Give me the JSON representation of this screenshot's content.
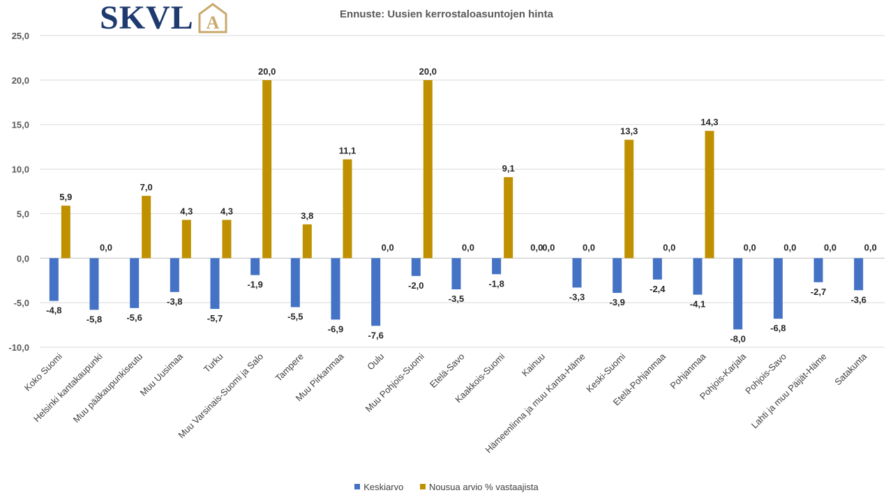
{
  "logo": {
    "text": "SKVL",
    "mark": "A"
  },
  "chart_data": {
    "type": "bar",
    "title": "Ennuste: Uusien kerrostaloasuntojen hinta",
    "xlabel": "",
    "ylabel": "",
    "ylim": [
      -10,
      25
    ],
    "yticks": [
      "25,0",
      "20,0",
      "15,0",
      "10,0",
      "5,0",
      "0,0",
      "-5,0",
      "-10,0"
    ],
    "ytick_values": [
      25,
      20,
      15,
      10,
      5,
      0,
      -5,
      -10
    ],
    "grid": true,
    "legend_position": "bottom",
    "categories": [
      "Koko Suomi",
      "Helsinki kantakaupunki",
      "Muu pääkaupunkiseutu",
      "Muu Uusimaa",
      "Turku",
      "Muu Varsinais-Suomi ja Salo",
      "Tampere",
      "Muu Pirkanmaa",
      "Oulu",
      "Muu Pohjois-Suomi",
      "Etelä-Savo",
      "Kaakkois-Suomi",
      "Kainuu",
      "Hämeenlinna ja muu Kanta-Häme",
      "Keski-Suomi",
      "Etelä-Pohjanmaa",
      "Pohjanmaa",
      "Pohjois-Karjala",
      "Pohjois-Savo",
      "Lahti ja muu Päijät-Häme",
      "Satakunta"
    ],
    "series": [
      {
        "name": "Keskiarvo",
        "color": "#4472c4",
        "values": [
          -4.8,
          -5.8,
          -5.6,
          -3.8,
          -5.7,
          -1.9,
          -5.5,
          -6.9,
          -7.6,
          -2.0,
          -3.5,
          -1.8,
          0.0,
          -3.3,
          -3.9,
          -2.4,
          -4.1,
          -8.0,
          -6.8,
          -2.7,
          -3.6
        ],
        "labels": [
          "-4,8",
          "-5,8",
          "-5,6",
          "-3,8",
          "-5,7",
          "-1,9",
          "-5,5",
          "-6,9",
          "-7,6",
          "-2,0",
          "-3,5",
          "-1,8",
          "0,0",
          "-3,3",
          "-3,9",
          "-2,4",
          "-4,1",
          "-8,0",
          "-6,8",
          "-2,7",
          "-3,6"
        ]
      },
      {
        "name": "Nousua arvio % vastaajista",
        "color": "#bf9000",
        "values": [
          5.9,
          0.0,
          7.0,
          4.3,
          4.3,
          20.0,
          3.8,
          11.1,
          0.0,
          20.0,
          0.0,
          9.1,
          0.0,
          0.0,
          13.3,
          0.0,
          14.3,
          0.0,
          0.0,
          0.0,
          0.0
        ],
        "labels": [
          "5,9",
          "0,0",
          "7,0",
          "4,3",
          "4,3",
          "20,0",
          "3,8",
          "11,1",
          "0,0",
          "20,0",
          "0,0",
          "9,1",
          "0,0",
          "0,0",
          "13,3",
          "0,0",
          "14,3",
          "0,0",
          "0,0",
          "0,0",
          "0,0"
        ]
      }
    ]
  }
}
